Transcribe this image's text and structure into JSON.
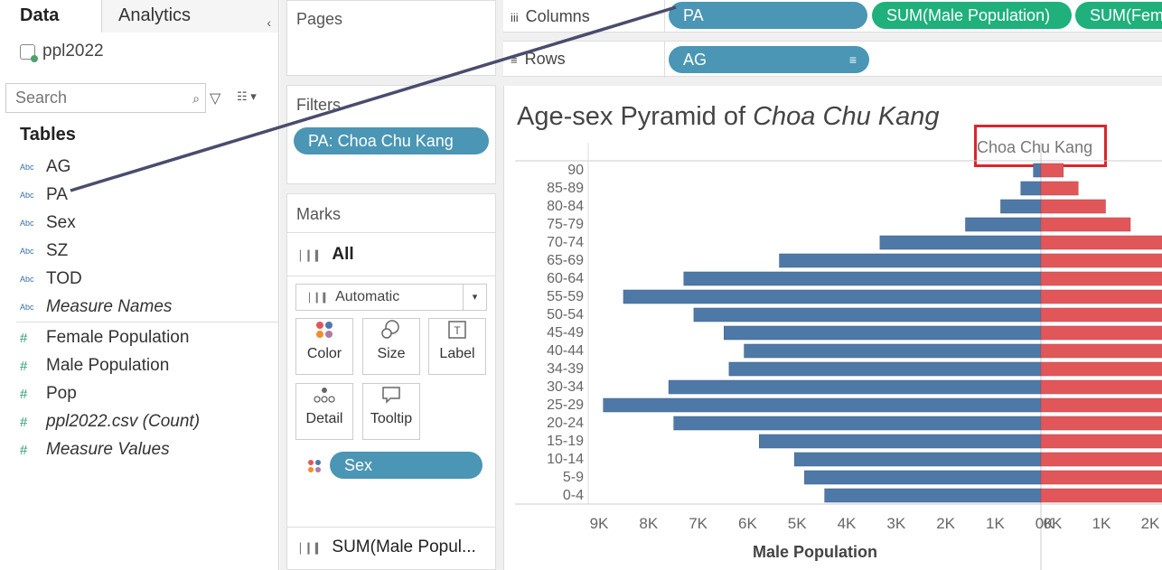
{
  "data_pane": {
    "tabs": [
      {
        "label": "Data"
      },
      {
        "label": "Analytics"
      }
    ],
    "collapse_glyph": "‹",
    "datasource": "ppl2022",
    "search_placeholder": "Search",
    "tables_title": "Tables",
    "fields": [
      {
        "type": "Abc",
        "name": "AG",
        "italic": false
      },
      {
        "type": "Abc",
        "name": "PA",
        "italic": false
      },
      {
        "type": "Abc",
        "name": "Sex",
        "italic": false
      },
      {
        "type": "Abc",
        "name": "SZ",
        "italic": false
      },
      {
        "type": "Abc",
        "name": "TOD",
        "italic": false
      },
      {
        "type": "Abc",
        "name": "Measure Names",
        "italic": true
      }
    ],
    "measures": [
      {
        "type": "#",
        "name": "Female Population",
        "italic": false
      },
      {
        "type": "#",
        "name": "Male Population",
        "italic": false
      },
      {
        "type": "#",
        "name": "Pop",
        "italic": false
      },
      {
        "type": "#",
        "name": "ppl2022.csv (Count)",
        "italic": true
      },
      {
        "type": "#",
        "name": "Measure Values",
        "italic": true
      }
    ]
  },
  "pages_title": "Pages",
  "filters": {
    "title": "Filters",
    "pill": "PA: Choa Chu Kang"
  },
  "marks": {
    "title": "Marks",
    "all_label": "All",
    "type_label": "Automatic",
    "buttons": {
      "color": "Color",
      "size": "Size",
      "label": "Label",
      "detail": "Detail",
      "tooltip": "Tooltip"
    },
    "sex_pill": "Sex",
    "bottom_label": "SUM(Male Popul..."
  },
  "columns": {
    "label": "Columns",
    "pills": [
      "PA",
      "SUM(Male Population)",
      "SUM(Fem"
    ]
  },
  "rows": {
    "label": "Rows",
    "pills": [
      "AG"
    ]
  },
  "view": {
    "title_prefix": "Age-sex Pyramid of ",
    "title_place": "Choa Chu Kang",
    "pane_header": "Choa Chu Kang",
    "accent_red": "#d9262c"
  },
  "chart_data": {
    "type": "bar",
    "orientation": "horizontal",
    "categories": [
      "90",
      "85-89",
      "80-84",
      "75-79",
      "70-74",
      "65-69",
      "60-64",
      "55-59",
      "50-54",
      "45-49",
      "40-44",
      "34-39",
      "30-34",
      "25-29",
      "20-24",
      "15-19",
      "10-14",
      "5-9",
      "0-4"
    ],
    "series": [
      {
        "name": "Male Population",
        "color": "#4e79a7",
        "values": [
          150,
          400,
          800,
          1500,
          3200,
          5200,
          7100,
          8300,
          6900,
          6300,
          5900,
          6200,
          7400,
          8700,
          7300,
          5600,
          4900,
          4700,
          4300
        ]
      },
      {
        "name": "Female Population",
        "color": "#e15759",
        "values": [
          450,
          750,
          1300,
          1800,
          2700,
          2700,
          2700,
          2700,
          2700,
          2700,
          2700,
          2700,
          2700,
          2700,
          2700,
          2700,
          2700,
          2700,
          2700
        ]
      }
    ],
    "male_axis": {
      "label": "Male Population",
      "ticks": [
        "9K",
        "8K",
        "7K",
        "6K",
        "5K",
        "4K",
        "3K",
        "2K",
        "1K",
        "0K"
      ],
      "range": [
        0,
        9000
      ]
    },
    "female_axis": {
      "ticks": [
        "0K",
        "1K",
        "2K"
      ],
      "range": [
        0,
        2300
      ]
    }
  }
}
